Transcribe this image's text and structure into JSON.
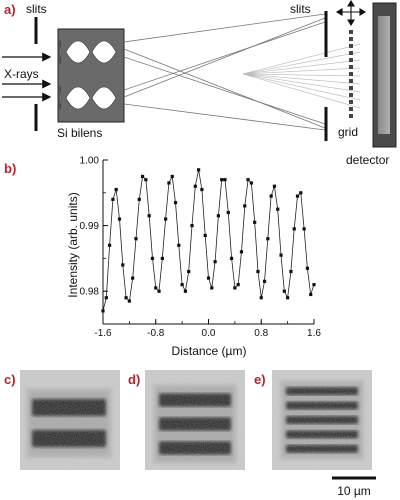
{
  "panel_labels": {
    "a": "a)",
    "b": "b)",
    "c": "c)",
    "d": "d)",
    "e": "e)"
  },
  "panel_a": {
    "slits_left_label": "slits",
    "xrays_label": "X-rays",
    "lens_label": "Si bilens",
    "slits_right_label": "slits",
    "grid_label": "grid",
    "detector_label": "detector"
  },
  "panel_c": {
    "stripe_count": 2
  },
  "panel_d": {
    "stripe_count": 3
  },
  "panel_e": {
    "stripe_count": 5
  },
  "scale_bar_label": "10 µm",
  "colors": {
    "panel_label": "#b5232e",
    "lens_body": "#6a6a6a",
    "detector_body": "#4a4a4a"
  },
  "chart_data": {
    "type": "line",
    "title": "",
    "xlabel": "Distance (µm)",
    "ylabel": "Intensity (arb. units)",
    "xlim": [
      -1.6,
      1.6
    ],
    "ylim": [
      0.975,
      1.0
    ],
    "x_ticks": [
      "-1.6",
      "-0.8",
      "0.0",
      "0.8",
      "1.6"
    ],
    "y_ticks": [
      "0.98",
      "0.99",
      "1.00"
    ],
    "series": [
      {
        "x": [
          -1.6,
          -1.55,
          -1.5,
          -1.45,
          -1.4,
          -1.35,
          -1.3,
          -1.25,
          -1.2,
          -1.15,
          -1.1,
          -1.05,
          -1.0,
          -0.95,
          -0.9,
          -0.85,
          -0.8,
          -0.75,
          -0.7,
          -0.65,
          -0.6,
          -0.55,
          -0.5,
          -0.45,
          -0.4,
          -0.35,
          -0.3,
          -0.25,
          -0.2,
          -0.15,
          -0.1,
          -0.05,
          0.0,
          0.05,
          0.1,
          0.15,
          0.2,
          0.25,
          0.3,
          0.35,
          0.4,
          0.45,
          0.5,
          0.55,
          0.6,
          0.65,
          0.7,
          0.75,
          0.8,
          0.85,
          0.9,
          0.95,
          1.0,
          1.05,
          1.1,
          1.15,
          1.2,
          1.25,
          1.3,
          1.35,
          1.4,
          1.45,
          1.5,
          1.55,
          1.6
        ],
        "y": [
          0.977,
          0.979,
          0.987,
          0.994,
          0.9955,
          0.991,
          0.984,
          0.979,
          0.9785,
          0.982,
          0.988,
          0.994,
          0.9975,
          0.997,
          0.9915,
          0.985,
          0.9805,
          0.98,
          0.985,
          0.991,
          0.9965,
          0.9975,
          0.9935,
          0.987,
          0.981,
          0.98,
          0.983,
          0.99,
          0.996,
          0.9985,
          0.9955,
          0.9885,
          0.982,
          0.9805,
          0.9845,
          0.9915,
          0.997,
          0.997,
          0.992,
          0.985,
          0.9805,
          0.981,
          0.986,
          0.993,
          0.997,
          0.9965,
          0.9905,
          0.983,
          0.979,
          0.9815,
          0.988,
          0.9945,
          0.996,
          0.9925,
          0.9855,
          0.98,
          0.979,
          0.983,
          0.9895,
          0.9945,
          0.995,
          0.9895,
          0.9835,
          0.9795,
          0.981
        ]
      }
    ]
  }
}
